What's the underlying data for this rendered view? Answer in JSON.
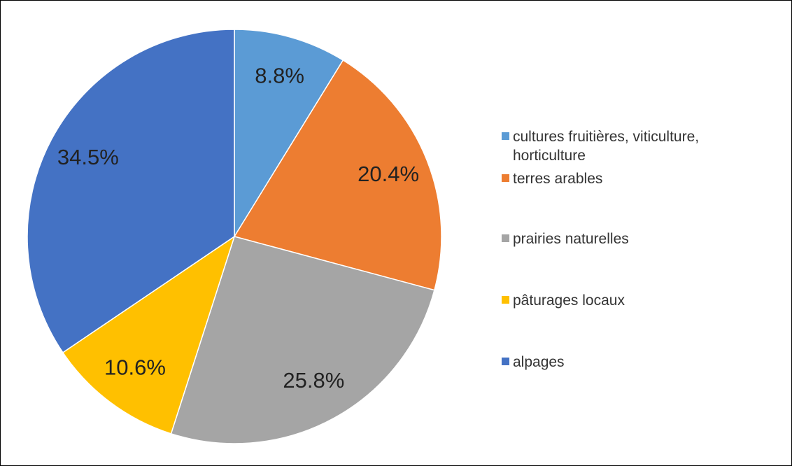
{
  "chart_data": {
    "type": "pie",
    "categories": [
      "cultures fruitières, viticulture, horticulture",
      "terres arables",
      "prairies naturelles",
      "pâturages locaux",
      "alpages"
    ],
    "values": [
      8.8,
      20.4,
      25.8,
      10.6,
      34.5
    ],
    "value_labels": [
      "8.8%",
      "20.4%",
      "25.8%",
      "10.6%",
      "34.5%"
    ],
    "colors": [
      "#5b9bd5",
      "#ed7d31",
      "#a5a5a5",
      "#ffc000",
      "#4472c4"
    ],
    "legend": "right"
  }
}
